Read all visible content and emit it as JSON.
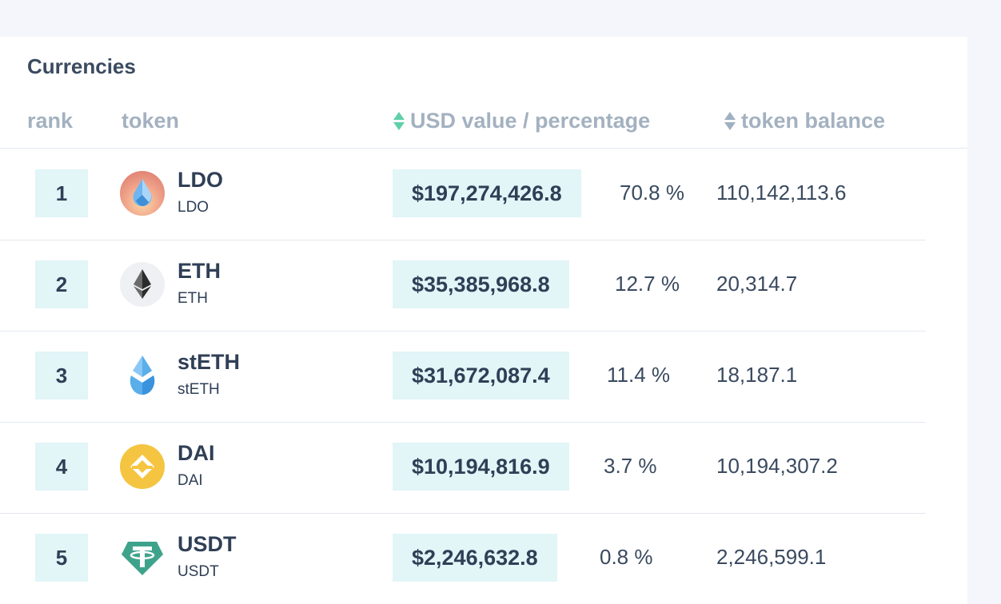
{
  "panel": {
    "title": "Currencies"
  },
  "columns": {
    "rank": "rank",
    "token": "token",
    "usd": "USD value / percentage",
    "balance": "token balance"
  },
  "colors": {
    "badge_bg": "#e2f5f7",
    "sort_active": "#5fd0a8",
    "header_text": "#a3b1c0"
  },
  "rows": [
    {
      "rank": "1",
      "symbol": "LDO",
      "sub": "LDO",
      "usd": "$197,274,426.8",
      "pct": "70.8 %",
      "balance": "110,142,113.6",
      "icon": "lido-dao-icon"
    },
    {
      "rank": "2",
      "symbol": "ETH",
      "sub": "ETH",
      "usd": "$35,385,968.8",
      "pct": "12.7 %",
      "balance": "20,314.7",
      "icon": "ethereum-icon"
    },
    {
      "rank": "3",
      "symbol": "stETH",
      "sub": "stETH",
      "usd": "$31,672,087.4",
      "pct": "11.4 %",
      "balance": "18,187.1",
      "icon": "steth-icon"
    },
    {
      "rank": "4",
      "symbol": "DAI",
      "sub": "DAI",
      "usd": "$10,194,816.9",
      "pct": "3.7 %",
      "balance": "10,194,307.2",
      "icon": "dai-icon"
    },
    {
      "rank": "5",
      "symbol": "USDT",
      "sub": "USDT",
      "usd": "$2,246,632.8",
      "pct": "0.8 %",
      "balance": "2,246,599.1",
      "icon": "tether-icon"
    }
  ]
}
